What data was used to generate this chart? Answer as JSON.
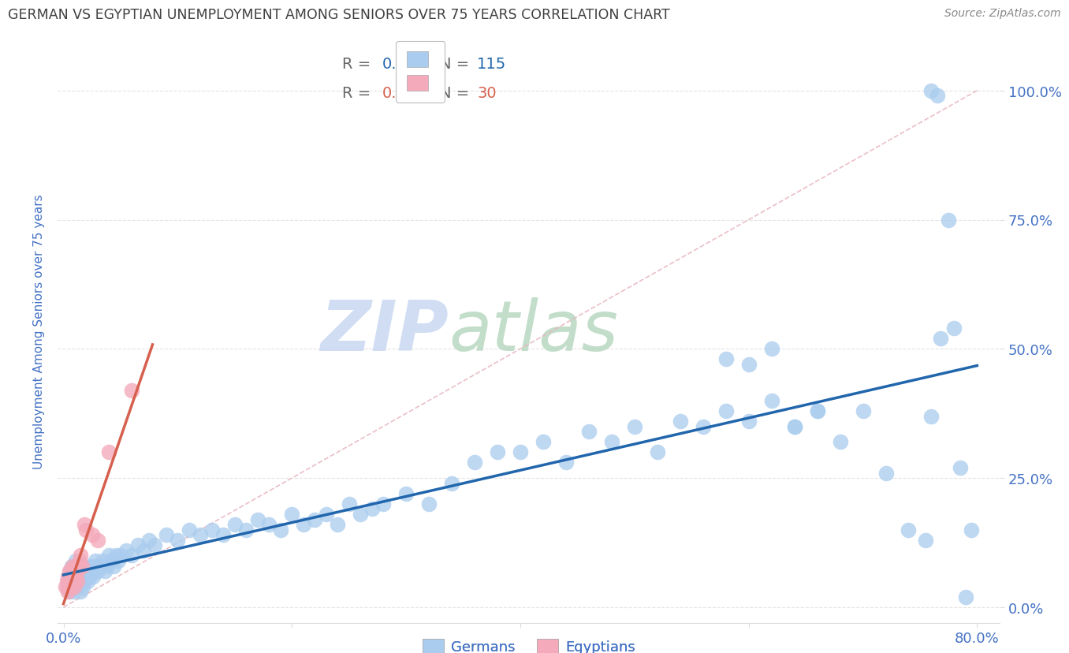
{
  "title": "GERMAN VS EGYPTIAN UNEMPLOYMENT AMONG SENIORS OVER 75 YEARS CORRELATION CHART",
  "source": "Source: ZipAtlas.com",
  "ylabel": "Unemployment Among Seniors over 75 years",
  "xlim": [
    -0.005,
    0.82
  ],
  "ylim": [
    -0.03,
    1.1
  ],
  "yticks": [
    0.0,
    0.25,
    0.5,
    0.75,
    1.0
  ],
  "ytick_labels": [
    "0.0%",
    "25.0%",
    "50.0%",
    "75.0%",
    "100.0%"
  ],
  "xticks": [
    0.0,
    0.2,
    0.4,
    0.6,
    0.8
  ],
  "xtick_labels": [
    "0.0%",
    "",
    "",
    "",
    "80.0%"
  ],
  "german_R": 0.536,
  "german_N": 115,
  "egyptian_R": 0.195,
  "egyptian_N": 30,
  "german_color": "#aaccee",
  "egyptian_color": "#f4aabb",
  "german_line_color": "#2166ac",
  "egyptian_line_color": "#d6604d",
  "diagonal_color": "#e8b8c0",
  "background_color": "#ffffff",
  "title_color": "#404040",
  "axis_label_color": "#4472c4",
  "tick_color": "#4472c4",
  "watermark_zip_color": "#c8d8f0",
  "watermark_atlas_color": "#d8e8d8",
  "grid_color": "#dddddd",
  "legend_edge_color": "#bbbbbb",
  "german_x": [
    0.003,
    0.004,
    0.005,
    0.005,
    0.006,
    0.006,
    0.007,
    0.007,
    0.008,
    0.008,
    0.009,
    0.009,
    0.01,
    0.01,
    0.011,
    0.011,
    0.012,
    0.012,
    0.013,
    0.013,
    0.014,
    0.014,
    0.015,
    0.015,
    0.016,
    0.016,
    0.017,
    0.017,
    0.018,
    0.018,
    0.019,
    0.02,
    0.021,
    0.022,
    0.023,
    0.024,
    0.025,
    0.026,
    0.027,
    0.028,
    0.03,
    0.032,
    0.034,
    0.036,
    0.038,
    0.04,
    0.042,
    0.044,
    0.046,
    0.048,
    0.05,
    0.055,
    0.06,
    0.065,
    0.07,
    0.075,
    0.08,
    0.09,
    0.1,
    0.11,
    0.12,
    0.13,
    0.14,
    0.15,
    0.16,
    0.17,
    0.18,
    0.19,
    0.2,
    0.21,
    0.22,
    0.23,
    0.24,
    0.25,
    0.26,
    0.27,
    0.28,
    0.3,
    0.32,
    0.34,
    0.36,
    0.38,
    0.4,
    0.42,
    0.44,
    0.46,
    0.48,
    0.5,
    0.52,
    0.54,
    0.56,
    0.58,
    0.6,
    0.62,
    0.64,
    0.66,
    0.68,
    0.7,
    0.72,
    0.74,
    0.58,
    0.6,
    0.62,
    0.64,
    0.66,
    0.755,
    0.76,
    0.785,
    0.79,
    0.795,
    0.76,
    0.765,
    0.768,
    0.775,
    0.78
  ],
  "german_y": [
    0.04,
    0.05,
    0.03,
    0.06,
    0.04,
    0.07,
    0.05,
    0.08,
    0.04,
    0.06,
    0.03,
    0.07,
    0.05,
    0.08,
    0.04,
    0.09,
    0.05,
    0.06,
    0.04,
    0.07,
    0.05,
    0.08,
    0.03,
    0.06,
    0.07,
    0.05,
    0.04,
    0.08,
    0.06,
    0.05,
    0.07,
    0.06,
    0.05,
    0.07,
    0.06,
    0.08,
    0.07,
    0.06,
    0.08,
    0.09,
    0.07,
    0.08,
    0.09,
    0.07,
    0.08,
    0.1,
    0.09,
    0.08,
    0.1,
    0.09,
    0.1,
    0.11,
    0.1,
    0.12,
    0.11,
    0.13,
    0.12,
    0.14,
    0.13,
    0.15,
    0.14,
    0.15,
    0.14,
    0.16,
    0.15,
    0.17,
    0.16,
    0.15,
    0.18,
    0.16,
    0.17,
    0.18,
    0.16,
    0.2,
    0.18,
    0.19,
    0.2,
    0.22,
    0.2,
    0.24,
    0.28,
    0.3,
    0.3,
    0.32,
    0.28,
    0.34,
    0.32,
    0.35,
    0.3,
    0.36,
    0.35,
    0.38,
    0.36,
    0.4,
    0.35,
    0.38,
    0.32,
    0.38,
    0.26,
    0.15,
    0.48,
    0.47,
    0.5,
    0.35,
    0.38,
    0.13,
    0.37,
    0.27,
    0.02,
    0.15,
    1.0,
    0.99,
    0.52,
    0.75,
    0.54
  ],
  "egyptian_x": [
    0.002,
    0.003,
    0.004,
    0.004,
    0.005,
    0.005,
    0.006,
    0.006,
    0.007,
    0.007,
    0.008,
    0.008,
    0.009,
    0.009,
    0.01,
    0.01,
    0.011,
    0.011,
    0.012,
    0.012,
    0.013,
    0.014,
    0.015,
    0.016,
    0.018,
    0.02,
    0.025,
    0.03,
    0.04,
    0.06
  ],
  "egyptian_y": [
    0.04,
    0.05,
    0.03,
    0.06,
    0.04,
    0.07,
    0.05,
    0.06,
    0.04,
    0.07,
    0.05,
    0.08,
    0.04,
    0.06,
    0.05,
    0.07,
    0.06,
    0.08,
    0.05,
    0.07,
    0.08,
    0.09,
    0.1,
    0.08,
    0.16,
    0.15,
    0.14,
    0.13,
    0.3,
    0.42
  ]
}
